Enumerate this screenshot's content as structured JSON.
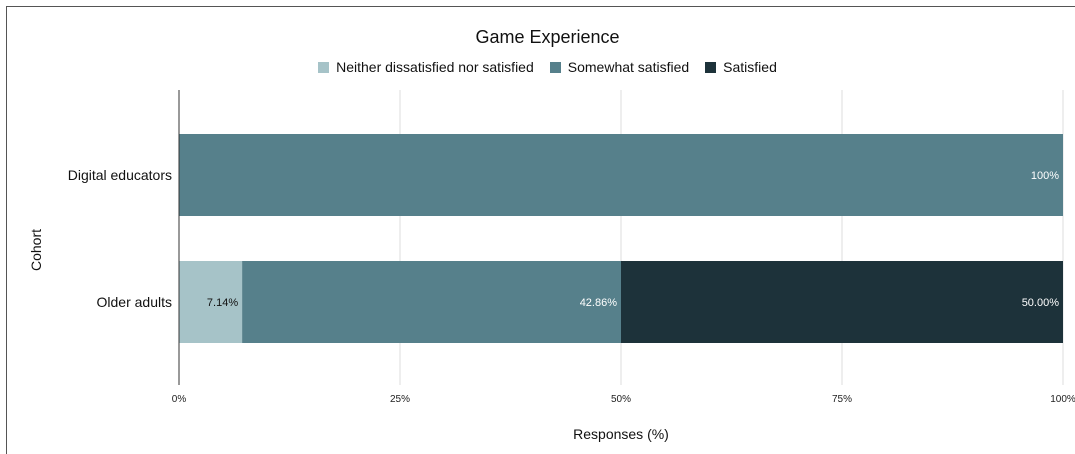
{
  "chart_data": {
    "type": "bar",
    "orientation": "horizontal",
    "stacked": true,
    "title": "Game Experience",
    "xlabel": "Responses (%)",
    "ylabel": "Cohort",
    "xlim": [
      0,
      100
    ],
    "xticks": [
      "0%",
      "25%",
      "50%",
      "75%",
      "100%"
    ],
    "categories": [
      "Digital educators",
      "Older adults"
    ],
    "legend_position": "top",
    "grid": true,
    "series": [
      {
        "name": "Neither dissatisfied nor satisfied",
        "color": "#a6c3c8",
        "values": [
          0,
          7.14
        ],
        "labels": [
          "",
          "7.14%"
        ]
      },
      {
        "name": "Somewhat satisfied",
        "color": "#56808b",
        "values": [
          100,
          42.86
        ],
        "labels": [
          "100%",
          "42.86%"
        ]
      },
      {
        "name": "Satisfied",
        "color": "#1d323a",
        "values": [
          0,
          50.0
        ],
        "labels": [
          "",
          "50.00%"
        ]
      }
    ]
  }
}
